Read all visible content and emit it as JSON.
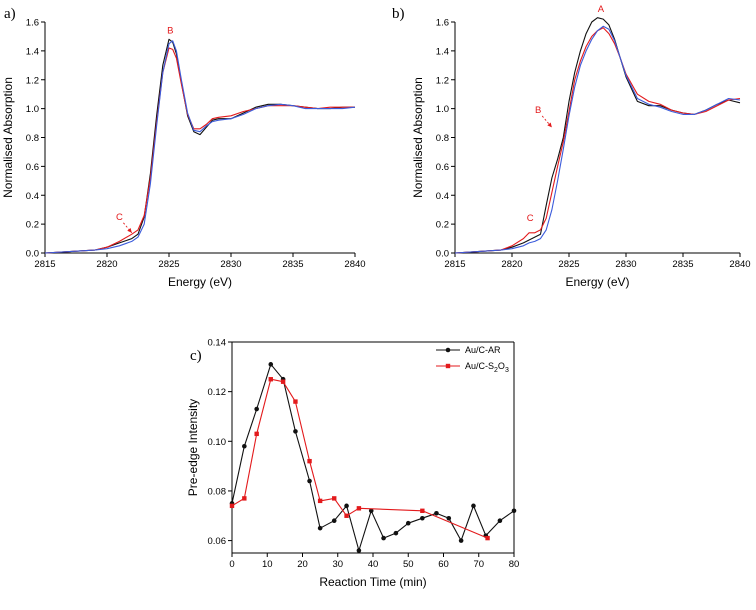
{
  "panel_labels": [
    "a)",
    "b)",
    "c)"
  ],
  "colors": {
    "black": "#111111",
    "red": "#e31a1c",
    "blue": "#3b5bdb",
    "axis": "#000000"
  },
  "chart_data": [
    {
      "type": "line",
      "xlabel": "Energy (eV)",
      "ylabel": "Normalised Absorption",
      "xlim": [
        2815,
        2840
      ],
      "ylim": [
        0.0,
        1.6
      ],
      "xticks": [
        2815,
        2820,
        2825,
        2830,
        2835,
        2840
      ],
      "yticks": [
        0.0,
        0.2,
        0.4,
        0.6,
        0.8,
        1.0,
        1.2,
        1.4,
        1.6
      ],
      "annotations": [
        {
          "text": "B",
          "x": 2825.1,
          "y": 1.52
        },
        {
          "text": "C",
          "x": 2821.0,
          "y": 0.23,
          "arrow_to": [
            2822.0,
            0.14
          ]
        }
      ],
      "series": [
        {
          "color": "black",
          "x": [
            2815,
            2817,
            2819,
            2820,
            2821,
            2822,
            2822.5,
            2823,
            2823.5,
            2824,
            2824.5,
            2825,
            2825.3,
            2825.6,
            2826,
            2826.5,
            2827,
            2827.5,
            2828,
            2828.5,
            2829,
            2830,
            2831,
            2832,
            2833,
            2834,
            2835,
            2836,
            2837,
            2838,
            2839,
            2840
          ],
          "y": [
            0.0,
            0.01,
            0.02,
            0.04,
            0.07,
            0.1,
            0.13,
            0.25,
            0.55,
            0.95,
            1.3,
            1.48,
            1.46,
            1.38,
            1.18,
            0.95,
            0.84,
            0.82,
            0.87,
            0.92,
            0.93,
            0.93,
            0.97,
            1.01,
            1.03,
            1.03,
            1.02,
            1.01,
            1.0,
            1.0,
            1.01,
            1.01
          ]
        },
        {
          "color": "red",
          "x": [
            2815,
            2817,
            2819,
            2820,
            2821,
            2822,
            2822.5,
            2823,
            2823.5,
            2824,
            2824.5,
            2825,
            2825.3,
            2825.6,
            2826,
            2826.5,
            2827,
            2827.5,
            2828,
            2828.5,
            2829,
            2830,
            2831,
            2832,
            2833,
            2834,
            2835,
            2836,
            2837,
            2838,
            2839,
            2840
          ],
          "y": [
            0.0,
            0.01,
            0.02,
            0.04,
            0.08,
            0.13,
            0.16,
            0.26,
            0.52,
            0.9,
            1.25,
            1.42,
            1.41,
            1.35,
            1.17,
            0.96,
            0.86,
            0.86,
            0.89,
            0.93,
            0.94,
            0.95,
            0.98,
            1.0,
            1.02,
            1.02,
            1.02,
            1.01,
            1.0,
            1.01,
            1.01,
            1.01
          ]
        },
        {
          "color": "blue",
          "x": [
            2815,
            2817,
            2819,
            2820,
            2821,
            2822,
            2822.5,
            2823,
            2823.5,
            2824,
            2824.5,
            2825,
            2825.3,
            2825.6,
            2826,
            2826.5,
            2827,
            2827.5,
            2828,
            2828.5,
            2829,
            2830,
            2831,
            2832,
            2833,
            2834,
            2835,
            2836,
            2837,
            2838,
            2839,
            2840
          ],
          "y": [
            0.0,
            0.01,
            0.02,
            0.03,
            0.05,
            0.08,
            0.11,
            0.2,
            0.48,
            0.88,
            1.25,
            1.45,
            1.47,
            1.4,
            1.2,
            0.97,
            0.85,
            0.84,
            0.88,
            0.91,
            0.92,
            0.93,
            0.96,
            1.0,
            1.02,
            1.03,
            1.02,
            1.0,
            1.0,
            1.0,
            1.0,
            1.01
          ]
        }
      ]
    },
    {
      "type": "line",
      "xlabel": "Energy (eV)",
      "ylabel": "Normalised Absorption",
      "xlim": [
        2815,
        2840
      ],
      "ylim": [
        0.0,
        1.6
      ],
      "xticks": [
        2815,
        2820,
        2825,
        2830,
        2835,
        2840
      ],
      "yticks": [
        0.0,
        0.2,
        0.4,
        0.6,
        0.8,
        1.0,
        1.2,
        1.4,
        1.6
      ],
      "annotations": [
        {
          "text": "A",
          "x": 2827.8,
          "y": 1.67
        },
        {
          "text": "B",
          "x": 2822.3,
          "y": 0.97,
          "arrow_to": [
            2823.5,
            0.87
          ]
        },
        {
          "text": "C",
          "x": 2821.6,
          "y": 0.22
        }
      ],
      "series": [
        {
          "color": "black",
          "x": [
            2815,
            2817,
            2819,
            2820,
            2821,
            2821.5,
            2822,
            2822.5,
            2823,
            2823.5,
            2824,
            2824.5,
            2825,
            2825.5,
            2826,
            2826.5,
            2827,
            2827.5,
            2828,
            2828.5,
            2829,
            2829.5,
            2830,
            2831,
            2832,
            2833,
            2834,
            2835,
            2836,
            2837,
            2838,
            2839,
            2840
          ],
          "y": [
            0.0,
            0.01,
            0.02,
            0.04,
            0.07,
            0.09,
            0.11,
            0.13,
            0.33,
            0.52,
            0.65,
            0.8,
            1.05,
            1.25,
            1.4,
            1.52,
            1.6,
            1.63,
            1.62,
            1.58,
            1.48,
            1.35,
            1.22,
            1.05,
            1.02,
            1.02,
            0.99,
            0.97,
            0.96,
            0.99,
            1.03,
            1.06,
            1.04
          ]
        },
        {
          "color": "red",
          "x": [
            2815,
            2817,
            2819,
            2820,
            2821,
            2821.5,
            2822,
            2822.5,
            2823,
            2823.5,
            2824,
            2824.5,
            2825,
            2825.5,
            2826,
            2826.5,
            2827,
            2827.5,
            2828,
            2828.5,
            2829,
            2829.5,
            2830,
            2831,
            2832,
            2833,
            2834,
            2835,
            2836,
            2837,
            2838,
            2839,
            2840
          ],
          "y": [
            0.0,
            0.01,
            0.02,
            0.05,
            0.1,
            0.14,
            0.14,
            0.16,
            0.24,
            0.42,
            0.6,
            0.77,
            0.98,
            1.2,
            1.33,
            1.43,
            1.5,
            1.54,
            1.56,
            1.52,
            1.45,
            1.35,
            1.24,
            1.1,
            1.05,
            1.03,
            0.99,
            0.97,
            0.96,
            0.98,
            1.02,
            1.06,
            1.07
          ]
        },
        {
          "color": "blue",
          "x": [
            2815,
            2817,
            2819,
            2820,
            2821,
            2821.5,
            2822,
            2822.5,
            2823,
            2823.5,
            2824,
            2824.5,
            2825,
            2825.5,
            2826,
            2826.5,
            2827,
            2827.5,
            2828,
            2828.5,
            2829,
            2829.5,
            2830,
            2831,
            2832,
            2833,
            2834,
            2835,
            2836,
            2837,
            2838,
            2839,
            2840
          ],
          "y": [
            0.0,
            0.01,
            0.02,
            0.03,
            0.05,
            0.07,
            0.08,
            0.1,
            0.16,
            0.3,
            0.5,
            0.72,
            0.95,
            1.15,
            1.3,
            1.4,
            1.48,
            1.54,
            1.57,
            1.55,
            1.47,
            1.35,
            1.23,
            1.07,
            1.03,
            1.01,
            0.98,
            0.96,
            0.96,
            0.99,
            1.03,
            1.07,
            1.06
          ]
        }
      ]
    },
    {
      "type": "line",
      "xlabel": "Reaction Time (min)",
      "ylabel": "Pre-edge Intensity",
      "xlim": [
        0,
        80
      ],
      "ylim": [
        0.055,
        0.14
      ],
      "xticks": [
        0,
        10,
        20,
        30,
        40,
        50,
        60,
        70,
        80
      ],
      "yticks": [
        0.06,
        0.08,
        0.1,
        0.12,
        0.14
      ],
      "legend": "top-right",
      "series": [
        {
          "name": "Au/C-AR",
          "color": "black",
          "marker": "circle",
          "x": [
            0,
            3.5,
            7,
            11,
            14.5,
            18,
            22,
            25,
            29,
            32.5,
            36,
            39.5,
            43,
            46.5,
            50,
            54,
            58,
            61.5,
            65,
            68.5,
            72,
            76,
            80
          ],
          "y": [
            0.075,
            0.098,
            0.113,
            0.131,
            0.125,
            0.104,
            0.084,
            0.065,
            0.068,
            0.074,
            0.056,
            0.072,
            0.061,
            0.063,
            0.067,
            0.069,
            0.071,
            0.069,
            0.06,
            0.074,
            0.062,
            0.068,
            0.072
          ]
        },
        {
          "name": "Au/C-S",
          "name_sub": "2",
          "name_end": "O",
          "name_sub2": "3",
          "color": "red",
          "marker": "square",
          "x": [
            0,
            3.5,
            7,
            11,
            14.5,
            18,
            22,
            25,
            29,
            32.5,
            36,
            54,
            72.5
          ],
          "y": [
            0.074,
            0.077,
            0.103,
            0.125,
            0.124,
            0.116,
            0.092,
            0.076,
            0.077,
            0.07,
            0.073,
            0.072,
            0.061
          ]
        }
      ]
    }
  ]
}
